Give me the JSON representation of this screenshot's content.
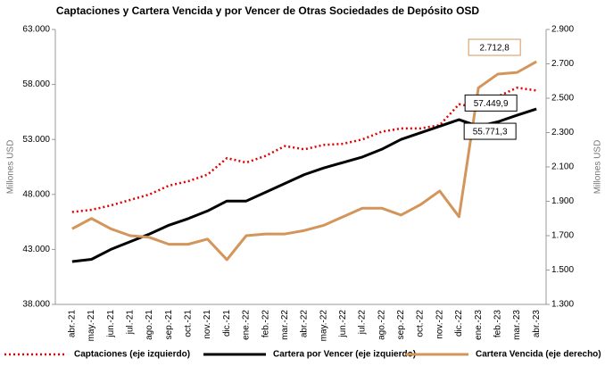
{
  "chart_data": {
    "type": "line",
    "title": "Captaciones y Cartera Vencida y por Vencer de Otras Sociedades de Depósito OSD",
    "ylabel": "Millones  USD",
    "y2label": "Millones  USD",
    "categories": [
      "abr.-21",
      "may.-21",
      "jun.-21",
      "jul.-21",
      "ago.-21",
      "sep.-21",
      "oct.-21",
      "nov.-21",
      "dic.-21",
      "ene.-22",
      "feb.-22",
      "mar.-22",
      "abr.-22",
      "may.-22",
      "jun.-22",
      "jul.-22",
      "ago.-22",
      "sep.-22",
      "oct.-22",
      "nov.-22",
      "dic.-22",
      "ene.-23",
      "feb.-23",
      "mar.-23",
      "abr.-23"
    ],
    "series": [
      {
        "name": "Captaciones (eje izquierdo)",
        "color": "#e00000",
        "style": "dotted",
        "values": [
          46400,
          46600,
          47000,
          47500,
          48000,
          48800,
          49200,
          49800,
          51300,
          50900,
          51500,
          52400,
          52100,
          52500,
          52600,
          53000,
          53700,
          54000,
          54000,
          54300,
          56200,
          55900,
          56900,
          57700,
          57449.9
        ],
        "value_labels": [
          null,
          null,
          null,
          null,
          null,
          null,
          null,
          null,
          null,
          null,
          null,
          null,
          null,
          null,
          null,
          null,
          null,
          null,
          null,
          null,
          null,
          null,
          null,
          null,
          "57.449,9"
        ]
      },
      {
        "name": "Cartera por Vencer (eje izquierdo)",
        "color": "#000000",
        "style": "solid",
        "values": [
          41900,
          42100,
          43000,
          43700,
          44400,
          45200,
          45800,
          46500,
          47400,
          47400,
          48200,
          49000,
          49800,
          50400,
          50900,
          51400,
          52100,
          53000,
          53600,
          54200,
          54800,
          54200,
          54600,
          55200,
          55771.3
        ],
        "value_labels": [
          null,
          null,
          null,
          null,
          null,
          null,
          null,
          null,
          null,
          null,
          null,
          null,
          null,
          null,
          null,
          null,
          null,
          null,
          null,
          null,
          null,
          null,
          null,
          null,
          "55.771,3"
        ]
      },
      {
        "name": "Cartera Vencida (eje derecho)",
        "color": "#d4955a",
        "style": "solid",
        "axis": "y2",
        "values": [
          1740,
          1800,
          1740,
          1700,
          1690,
          1650,
          1650,
          1680,
          1560,
          1700,
          1710,
          1710,
          1730,
          1760,
          1810,
          1860,
          1860,
          1820,
          1880,
          1960,
          1810,
          2560,
          2640,
          2650,
          2712.8
        ],
        "value_labels": [
          null,
          null,
          null,
          null,
          null,
          null,
          null,
          null,
          null,
          null,
          null,
          null,
          null,
          null,
          null,
          null,
          null,
          null,
          null,
          null,
          null,
          null,
          null,
          null,
          "2.712,8"
        ]
      }
    ],
    "ylim": [
      38000,
      63000
    ],
    "yticks": [
      {
        "value": 38000,
        "label": "38.000"
      },
      {
        "value": 43000,
        "label": "43.000"
      },
      {
        "value": 48000,
        "label": "48.000"
      },
      {
        "value": 53000,
        "label": "53.000"
      },
      {
        "value": 58000,
        "label": "58.000"
      },
      {
        "value": 63000,
        "label": "63.000"
      }
    ],
    "y2lim": [
      1300,
      2900
    ],
    "y2ticks": [
      {
        "value": 1300,
        "label": "1.300"
      },
      {
        "value": 1500,
        "label": "1.500"
      },
      {
        "value": 1700,
        "label": "1.700"
      },
      {
        "value": 1900,
        "label": "1.900"
      },
      {
        "value": 2100,
        "label": "2.100"
      },
      {
        "value": 2300,
        "label": "2.300"
      },
      {
        "value": 2500,
        "label": "2.500"
      },
      {
        "value": 2700,
        "label": "2.700"
      },
      {
        "value": 2900,
        "label": "2.900"
      }
    ],
    "grid": false
  }
}
